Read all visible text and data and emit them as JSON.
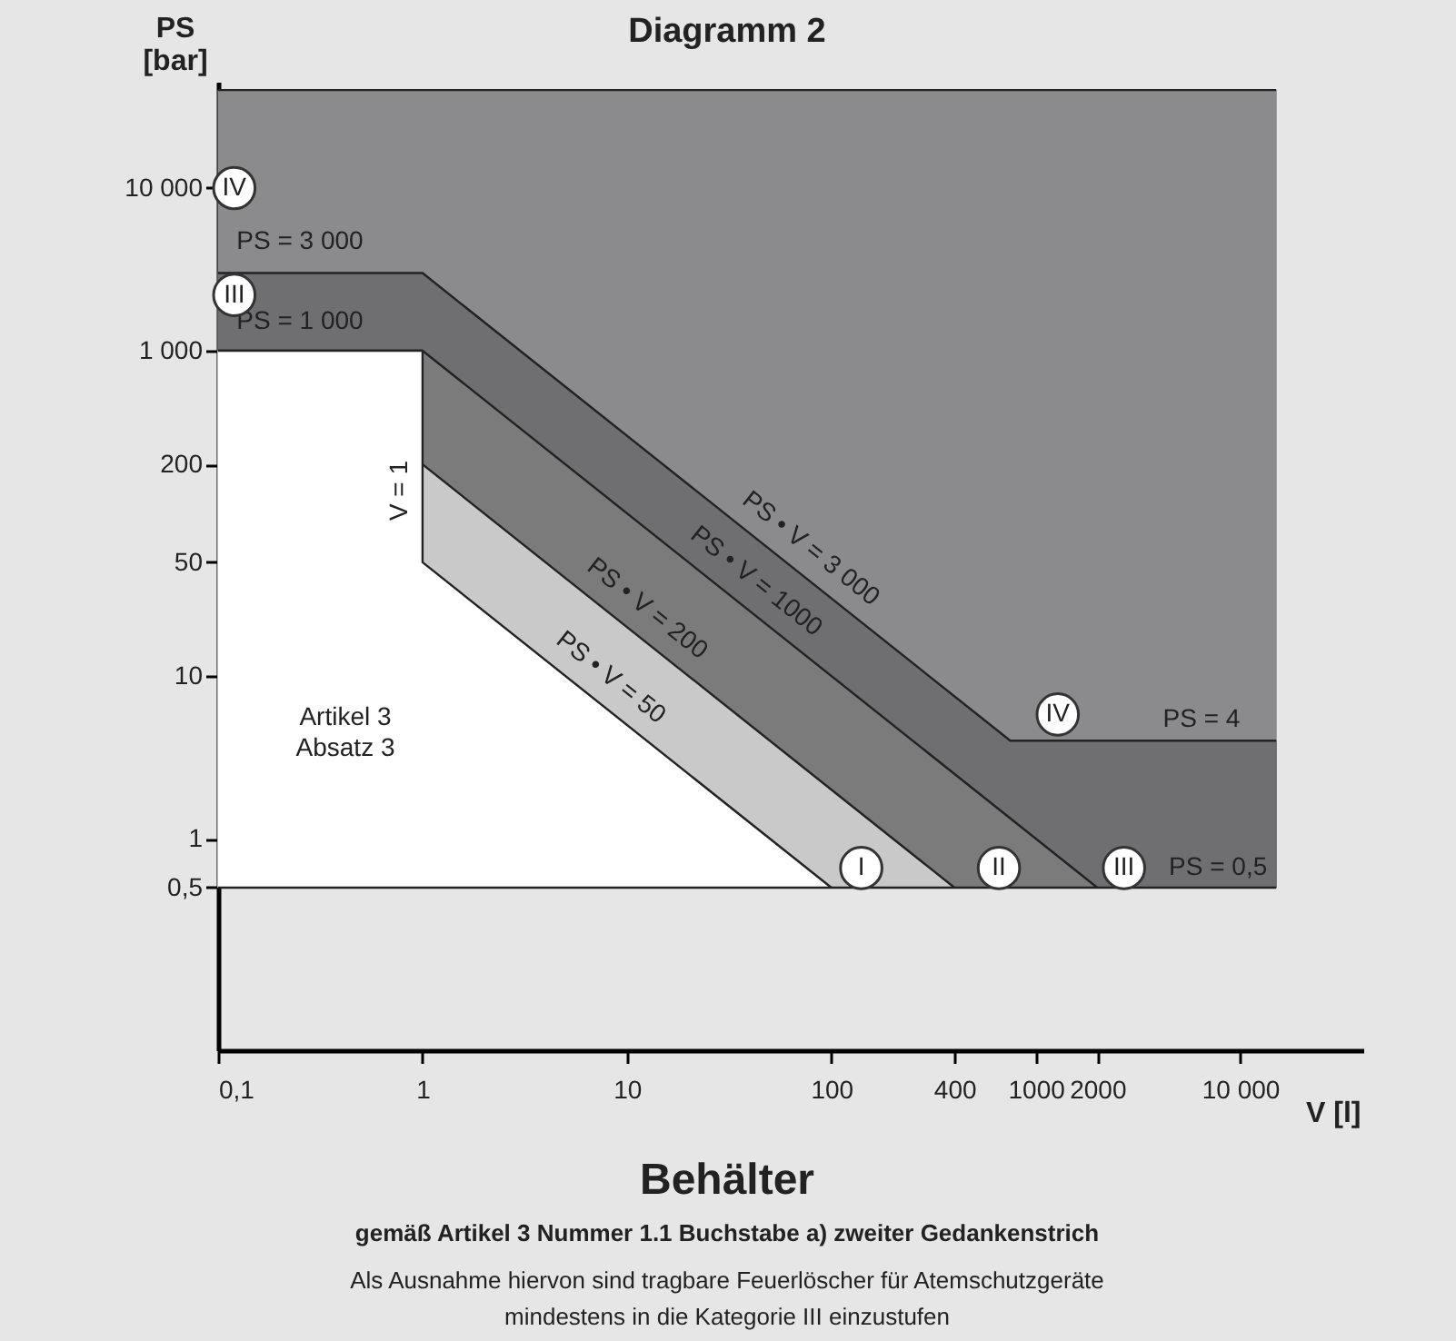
{
  "chart_data": {
    "type": "area",
    "title": "Diagramm 2",
    "xlabel": "V [l]",
    "ylabel": "PS\n[bar]",
    "log": "xy",
    "xlim": [
      0.1,
      40000
    ],
    "ylim": [
      0.05,
      45000
    ],
    "xticks": [
      {
        "value": 0.1,
        "label": "0,1"
      },
      1,
      10,
      100,
      400,
      1000,
      2000,
      {
        "value": 10000,
        "label": "10 000"
      }
    ],
    "yticks": [
      {
        "value": 0.5,
        "label": "0,5"
      },
      1,
      10,
      50,
      200,
      {
        "value": 1000,
        "label": "1 000"
      },
      {
        "value": 10000,
        "label": "10 000"
      }
    ],
    "series": [
      {
        "color": "#8b8b8d",
        "x": [
          0.1,
          15000
        ],
        "values": [
          40000,
          40000
        ]
      },
      {
        "color": "#6f6f71",
        "x": [
          0.1,
          1,
          750,
          15000
        ],
        "values": [
          3000,
          3000,
          4,
          4
        ]
      },
      {
        "color": "#7b7b7b",
        "x": [
          0.1,
          1,
          2000
        ],
        "values": [
          1000,
          1000,
          0.5
        ]
      },
      {
        "color": "#c9c9c9",
        "x": [
          1,
          400
        ],
        "values": [
          200,
          0.5
        ]
      },
      {
        "color": "#ffffff",
        "x": [
          0.1,
          1,
          1,
          100
        ],
        "values": [
          1000,
          1000,
          50,
          0.5
        ]
      }
    ],
    "ref_lines": [
      {
        "axis": "y",
        "value": 0.5,
        "label": "PS = 0,5"
      }
    ],
    "annotations": [
      {
        "text": "IV",
        "x": 0.12,
        "y": 10000
      },
      "PS = 3 000",
      {
        "text": "III",
        "x": 0.12,
        "y": 2200
      },
      "PS = 1 000",
      "V = 1",
      "Artikel 3\nAbsatz 3",
      "PS • V = 3 000",
      "PS • V = 1000",
      "PS • V = 200",
      "PS • V = 50",
      {
        "text": "IV",
        "x": 1280,
        "y": 5.8
      },
      "PS = 4",
      {
        "text": "I",
        "x": 140,
        "y": 0.66
      },
      {
        "text": "II",
        "x": 660,
        "y": 0.66
      },
      {
        "text": "III",
        "x": 2700,
        "y": 0.66
      },
      "Behälter",
      "gemäß Artikel 3  Nummer 1.1 Buchstabe a) zweiter  Gedankenstrich",
      "Als Ausnahme hiervon sind tragbare Feuerlöscher für Atemschutzgeräte\nmindestens in die Kategorie III einzustufen"
    ]
  }
}
